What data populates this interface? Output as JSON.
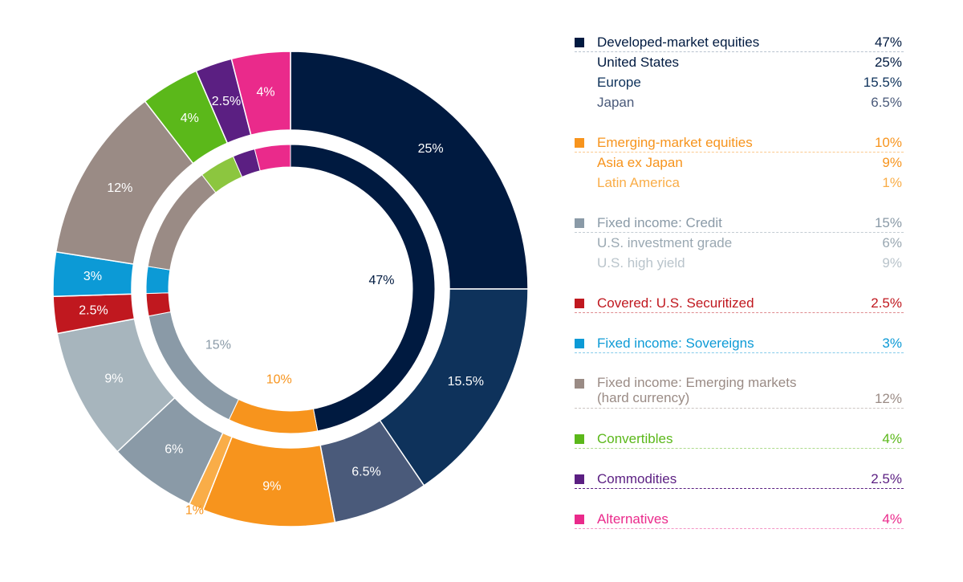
{
  "chart_data": {
    "type": "pie",
    "subtype": "nested-donut",
    "title": "",
    "inner_ring": [
      {
        "label": "Developed-market equities",
        "value": 47,
        "text": "47%",
        "color": "#001a40"
      },
      {
        "label": "Emerging-market equities",
        "value": 10,
        "text": "10%",
        "color": "#f7941d"
      },
      {
        "label": "Fixed income: Credit",
        "value": 15,
        "text": "15%",
        "color": "#8a9aa7"
      },
      {
        "label": "Covered: U.S. Securitized",
        "value": 2.5,
        "text": "",
        "color": "#c0181f"
      },
      {
        "label": "Fixed income: Sovereigns",
        "value": 3,
        "text": "",
        "color": "#0c9ad6"
      },
      {
        "label": "Fixed income: Emerging markets (hard currency)",
        "value": 12,
        "text": "",
        "color": "#9a8b85"
      },
      {
        "label": "Convertibles",
        "value": 4,
        "text": "",
        "color": "#8cc63f"
      },
      {
        "label": "Commodities",
        "value": 2.5,
        "text": "",
        "color": "#5b1f82"
      },
      {
        "label": "Alternatives",
        "value": 4,
        "text": "",
        "color": "#ea2a8b"
      }
    ],
    "outer_ring": [
      {
        "label": "United States",
        "value": 25,
        "text": "25%",
        "color": "#001a40",
        "text_color": "#ffffff"
      },
      {
        "label": "Europe",
        "value": 15.5,
        "text": "15.5%",
        "color": "#0e325b",
        "text_color": "#ffffff"
      },
      {
        "label": "Japan",
        "value": 6.5,
        "text": "6.5%",
        "color": "#4a5a7a",
        "text_color": "#ffffff"
      },
      {
        "label": "Asia ex Japan",
        "value": 9,
        "text": "9%",
        "color": "#f7941d",
        "text_color": "#ffffff"
      },
      {
        "label": "Latin America",
        "value": 1,
        "text": "1%",
        "color": "#f9ad48",
        "text_color": "#f7941d",
        "label_outside": true
      },
      {
        "label": "U.S. investment grade",
        "value": 6,
        "text": "6%",
        "color": "#8a9aa7",
        "text_color": "#ffffff"
      },
      {
        "label": "U.S. high yield",
        "value": 9,
        "text": "9%",
        "color": "#a7b5bd",
        "text_color": "#ffffff"
      },
      {
        "label": "Covered: U.S. Securitized",
        "value": 2.5,
        "text": "2.5%",
        "color": "#c0181f",
        "text_color": "#ffffff"
      },
      {
        "label": "Fixed income: Sovereigns",
        "value": 3,
        "text": "3%",
        "color": "#0c9ad6",
        "text_color": "#ffffff"
      },
      {
        "label": "Fixed income: Emerging markets (hard currency)",
        "value": 12,
        "text": "12%",
        "color": "#9a8b85",
        "text_color": "#ffffff"
      },
      {
        "label": "Convertibles",
        "value": 4,
        "text": "4%",
        "color": "#5bb81a",
        "text_color": "#ffffff"
      },
      {
        "label": "Commodities",
        "value": 2.5,
        "text": "2.5%",
        "color": "#5b1f82",
        "text_color": "#ffffff"
      },
      {
        "label": "Alternatives",
        "value": 4,
        "text": "4%",
        "color": "#ea2a8b",
        "text_color": "#ffffff"
      }
    ],
    "legend_position": "right"
  },
  "legend": [
    {
      "name": "Developed-market equities",
      "value": "47%",
      "swatch": "#001a40",
      "color": "#001a40",
      "children": [
        {
          "name": "United States",
          "value": "25%",
          "color": "#001a40"
        },
        {
          "name": "Europe",
          "value": "15.5%",
          "color": "#0e325b"
        },
        {
          "name": "Japan",
          "value": "6.5%",
          "color": "#4a5a7a"
        }
      ]
    },
    {
      "name": "Emerging-market equities",
      "value": "10%",
      "swatch": "#f7941d",
      "color": "#f7941d",
      "children": [
        {
          "name": "Asia ex Japan",
          "value": "9%",
          "color": "#f7941d"
        },
        {
          "name": "Latin America",
          "value": "1%",
          "color": "#f9ad48"
        }
      ]
    },
    {
      "name": "Fixed income: Credit",
      "value": "15%",
      "swatch": "#8a9aa7",
      "color": "#8a9aa7",
      "children": [
        {
          "name": "U.S. investment grade",
          "value": "6%",
          "color": "#9aa8b2"
        },
        {
          "name": "U.S. high yield",
          "value": "9%",
          "color": "#b9c4cb"
        }
      ]
    },
    {
      "name": "Covered: U.S. Securitized",
      "value": "2.5%",
      "swatch": "#c0181f",
      "color": "#c0181f",
      "children": []
    },
    {
      "name": "Fixed income: Sovereigns",
      "value": "3%",
      "swatch": "#0c9ad6",
      "color": "#0c9ad6",
      "children": []
    },
    {
      "name": "Fixed income: Emerging markets",
      "name2": "(hard currency)",
      "value": "12%",
      "swatch": "#9a8b85",
      "color": "#9a8b85",
      "children": []
    },
    {
      "name": "Convertibles",
      "value": "4%",
      "swatch": "#5bb81a",
      "color": "#5bb81a",
      "children": []
    },
    {
      "name": "Commodities",
      "value": "2.5%",
      "swatch": "#5b1f82",
      "color": "#5b1f82",
      "rule_color": "#5b1f82",
      "children": []
    },
    {
      "name": "Alternatives",
      "value": "4%",
      "swatch": "#ea2a8b",
      "color": "#ea2a8b",
      "children": []
    }
  ]
}
